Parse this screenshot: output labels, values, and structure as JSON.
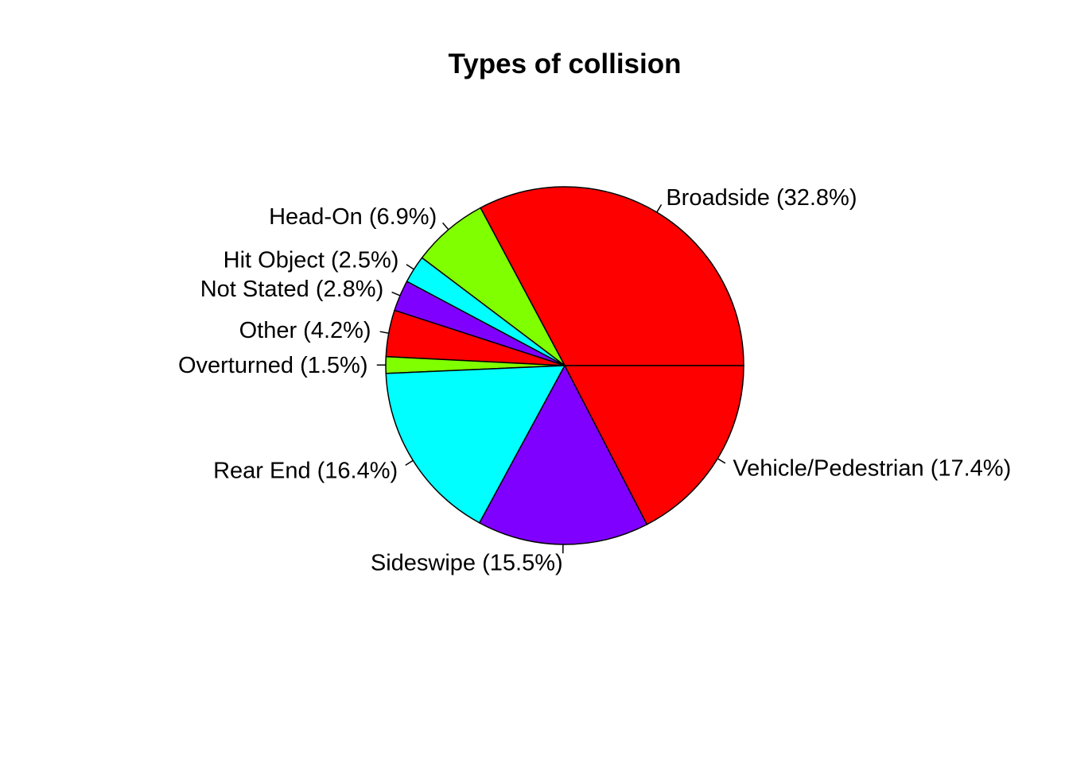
{
  "chart_data": {
    "type": "pie",
    "title": "Types of collision",
    "slices": [
      {
        "label": "Broadside (32.8%)",
        "category": "Broadside",
        "value": 32.8,
        "color": "#FF0000"
      },
      {
        "label": "Head-On (6.9%)",
        "category": "Head-On",
        "value": 6.9,
        "color": "#80FF00"
      },
      {
        "label": "Hit Object (2.5%)",
        "category": "Hit Object",
        "value": 2.5,
        "color": "#00FFFF"
      },
      {
        "label": "Not Stated (2.8%)",
        "category": "Not Stated",
        "value": 2.8,
        "color": "#8000FF"
      },
      {
        "label": "Other (4.2%)",
        "category": "Other",
        "value": 4.2,
        "color": "#FF0000"
      },
      {
        "label": "Overturned (1.5%)",
        "category": "Overturned",
        "value": 1.5,
        "color": "#80FF00"
      },
      {
        "label": "Rear End (16.4%)",
        "category": "Rear End",
        "value": 16.4,
        "color": "#00FFFF"
      },
      {
        "label": "Sideswipe (15.5%)",
        "category": "Sideswipe",
        "value": 15.5,
        "color": "#8000FF"
      },
      {
        "label": "Vehicle/Pedestrian (17.4%)",
        "category": "Vehicle/Pedestrian",
        "value": 17.4,
        "color": "#FF0000"
      }
    ],
    "start_angle": "3 o'clock",
    "direction": "counterclockwise",
    "legend": "none"
  }
}
